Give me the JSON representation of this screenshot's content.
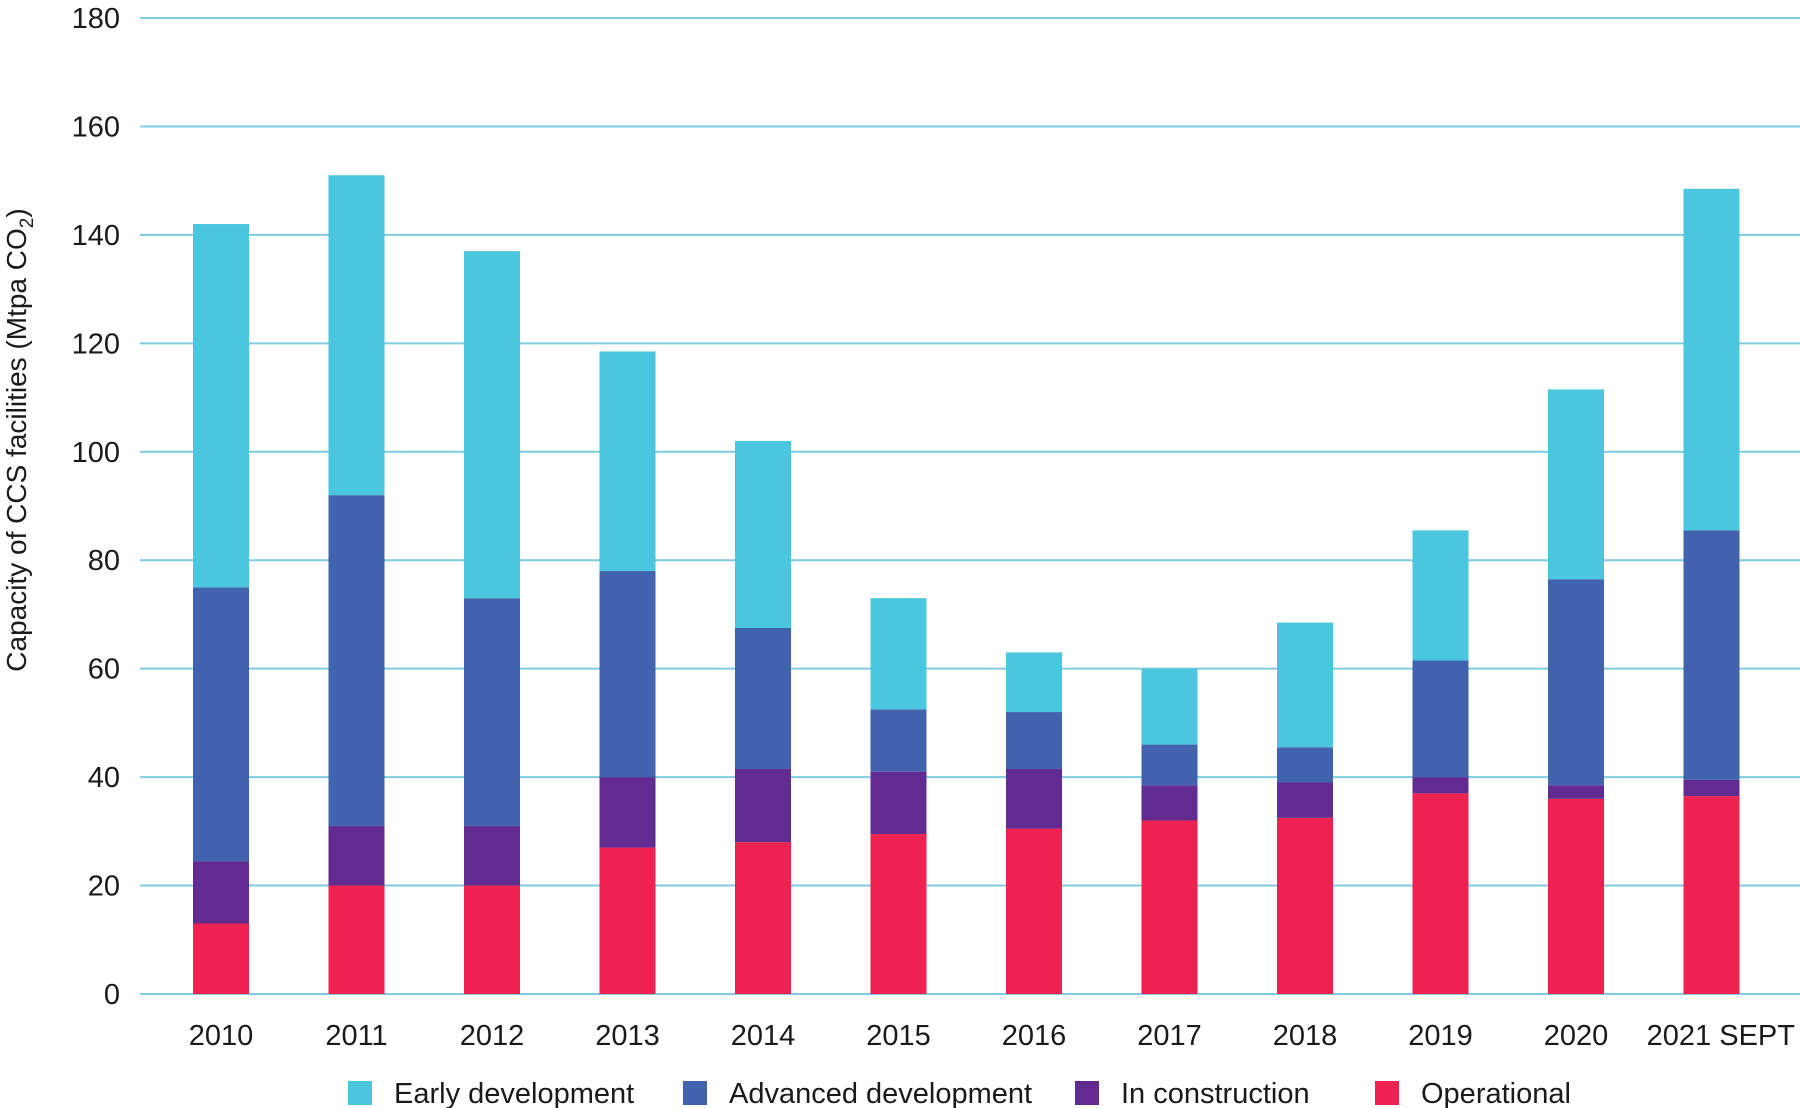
{
  "chart_data": {
    "type": "bar",
    "stacked": true,
    "title": "",
    "xlabel": "",
    "ylabel": "Capacity of CCS facilities (Mtpa CO",
    "ylabel_subscript": "2",
    "ylabel_close": ")",
    "ylim": [
      0,
      180
    ],
    "yticks": [
      0,
      20,
      40,
      60,
      80,
      100,
      120,
      140,
      160,
      180
    ],
    "grid": true,
    "legend_position": "bottom",
    "categories": [
      "2010",
      "2011",
      "2012",
      "2013",
      "2014",
      "2015",
      "2016",
      "2017",
      "2018",
      "2019",
      "2020",
      "2021 SEPT"
    ],
    "series": [
      {
        "name": "Operational",
        "color": "#ee2150",
        "values": [
          13,
          20,
          20,
          27,
          28,
          29.5,
          30.5,
          32,
          32.5,
          37,
          36,
          36.5
        ]
      },
      {
        "name": "In construction",
        "color": "#622b91",
        "values": [
          11.5,
          11,
          11,
          13,
          13.5,
          11.5,
          11,
          6.5,
          6.5,
          3,
          2.5,
          3
        ]
      },
      {
        "name": "Advanced development",
        "color": "#4163ad",
        "values": [
          50.5,
          61,
          42,
          38,
          26,
          11.5,
          10.5,
          7.5,
          6.5,
          21.5,
          38,
          46
        ]
      },
      {
        "name": "Early development",
        "color": "#4ac6de",
        "values": [
          67,
          59,
          64,
          40.5,
          34.5,
          20.5,
          11,
          14,
          23,
          24,
          35,
          63
        ]
      }
    ],
    "legend_order": [
      "Early development",
      "Advanced development",
      "In construction",
      "Operational"
    ]
  }
}
